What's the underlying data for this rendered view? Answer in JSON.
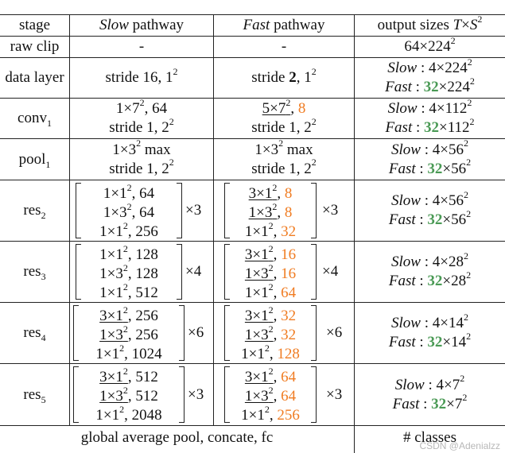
{
  "header": {
    "stage": "stage",
    "slow_it": "Slow",
    "slow_rest": " pathway",
    "fast_it": "Fast",
    "fast_rest": " pathway",
    "output": "output sizes "
  },
  "raw_clip": {
    "stage": "raw clip",
    "slow": "-",
    "fast": "-",
    "out": "64×224"
  },
  "data_layer": {
    "stage": "data layer",
    "slow": "stride 16, 1",
    "fast_a": "stride ",
    "fast_b": "2",
    "fast_c": ", 1",
    "out_slow_label": "Slow",
    "out_slow_val": " : 4×224",
    "out_fast_label": "Fast",
    "out_fast_sep": " : ",
    "out_fast_num": "32",
    "out_fast_val": "×224"
  },
  "conv1": {
    "stage": "conv",
    "slow_1a": "1×7",
    "slow_1b": ", 64",
    "slow_2": "stride 1, 2",
    "fast_1a": "5×7",
    "fast_1b": ", ",
    "fast_1c": "8",
    "fast_2": "stride 1, 2",
    "out_slow": " : 4×112",
    "out_fast": "×112"
  },
  "pool1": {
    "stage": "pool",
    "slow_1a": "1×3",
    "slow_1b": " max",
    "slow_2": "stride 1, 2",
    "fast_1a": "1×3",
    "fast_1b": " max",
    "fast_2": "stride 1, 2",
    "out_slow": " : 4×56",
    "out_fast": "×56"
  },
  "res2": {
    "stage": "res",
    "slow": [
      [
        "1×1",
        ", 64"
      ],
      [
        "1×3",
        ", 64"
      ],
      [
        "1×1",
        ", 256"
      ]
    ],
    "slow_rep": "×3",
    "fast": [
      [
        "3×1",
        ", ",
        "8"
      ],
      [
        "1×3",
        ", ",
        "8"
      ],
      [
        "1×1",
        ", ",
        "32"
      ]
    ],
    "fast_rep": "×3",
    "out_slow": " : 4×56",
    "out_fast": "×56"
  },
  "res3": {
    "stage": "res",
    "slow": [
      [
        "1×1",
        ", 128"
      ],
      [
        "1×3",
        ", 128"
      ],
      [
        "1×1",
        ", 512"
      ]
    ],
    "slow_rep": "×4",
    "fast": [
      [
        "3×1",
        ", ",
        "16"
      ],
      [
        "1×3",
        ", ",
        "16"
      ],
      [
        "1×1",
        ", ",
        "64"
      ]
    ],
    "fast_rep": "×4",
    "out_slow": " : 4×28",
    "out_fast": "×28"
  },
  "res4": {
    "stage": "res",
    "slow": [
      [
        "3×1",
        ", 256"
      ],
      [
        "1×3",
        ", 256"
      ],
      [
        "1×1",
        ", 1024"
      ]
    ],
    "slow_rep": "×6",
    "fast": [
      [
        "3×1",
        ", ",
        "32"
      ],
      [
        "1×3",
        ", ",
        "32"
      ],
      [
        "1×1",
        ", ",
        "128"
      ]
    ],
    "fast_rep": "×6",
    "out_slow": " : 4×14",
    "out_fast": "×14"
  },
  "res5": {
    "stage": "res",
    "slow": [
      [
        "3×1",
        ", 512"
      ],
      [
        "1×3",
        ", 512"
      ],
      [
        "1×1",
        ", 2048"
      ]
    ],
    "slow_rep": "×3",
    "fast": [
      [
        "3×1",
        ", ",
        "64"
      ],
      [
        "1×3",
        ", ",
        "64"
      ],
      [
        "1×1",
        ", ",
        "256"
      ]
    ],
    "fast_rep": "×3",
    "out_slow": " : 4×7",
    "out_fast": "×7"
  },
  "footer": {
    "left": "global average pool, concate, fc",
    "right": "# classes"
  },
  "watermark": "CSDN @Adenialzz",
  "colors": {
    "orange": "#f07c22",
    "green": "#4a9a55"
  }
}
